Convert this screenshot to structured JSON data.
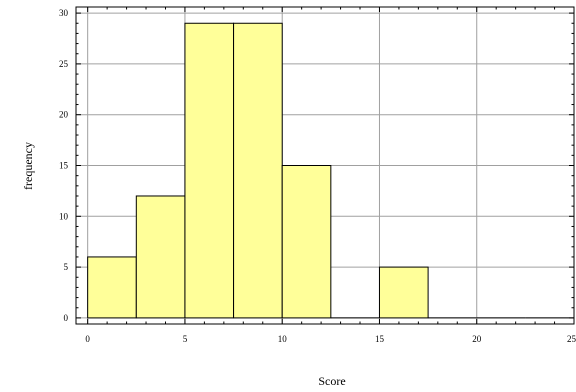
{
  "chart_data": {
    "type": "bar",
    "title": "",
    "xlabel": "Score",
    "ylabel": "frequency",
    "bin_width": 2.5,
    "bins": [
      {
        "start": 0,
        "end": 2.5,
        "value": 6
      },
      {
        "start": 2.5,
        "end": 5,
        "value": 12
      },
      {
        "start": 5,
        "end": 7.5,
        "value": 29
      },
      {
        "start": 7.5,
        "end": 10,
        "value": 29
      },
      {
        "start": 10,
        "end": 12.5,
        "value": 15
      },
      {
        "start": 12.5,
        "end": 15,
        "value": 0
      },
      {
        "start": 15,
        "end": 17.5,
        "value": 5
      },
      {
        "start": 17.5,
        "end": 20,
        "value": 0
      },
      {
        "start": 20,
        "end": 22.5,
        "value": 0
      },
      {
        "start": 22.5,
        "end": 25,
        "value": 0
      }
    ],
    "xlim": [
      -0.6,
      25
    ],
    "ylim": [
      -0.6,
      30.6
    ],
    "xticks": [
      0,
      5,
      10,
      15,
      20,
      25
    ],
    "yticks": [
      0,
      5,
      10,
      15,
      20,
      25,
      30
    ],
    "x_tick_labels": [
      "0",
      "5",
      "10",
      "15",
      "20",
      "25"
    ],
    "y_tick_labels": [
      "0",
      "5",
      "10",
      "15",
      "20",
      "25",
      "30"
    ],
    "grid": true,
    "colors": {
      "bar_fill": "#ffff99",
      "bar_stroke": "#000000",
      "grid": "#a0a0a0",
      "axis": "#000000"
    }
  }
}
